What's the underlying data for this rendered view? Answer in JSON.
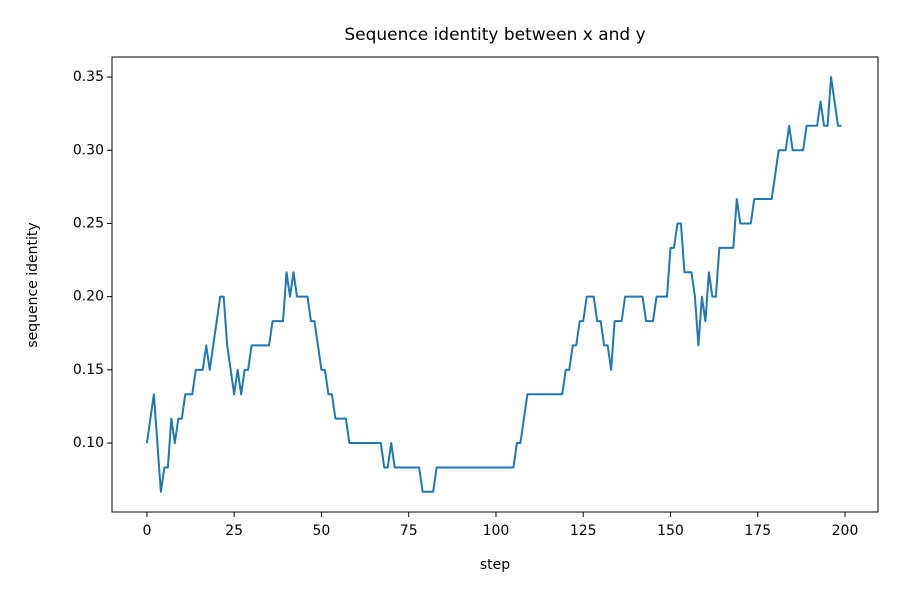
{
  "chart_data": {
    "type": "line",
    "title": "Sequence identity between x and y",
    "x_label": "step",
    "y_label": "sequence identity",
    "x": [
      0,
      1,
      2,
      3,
      4,
      5,
      6,
      7,
      8,
      9,
      10,
      11,
      12,
      13,
      14,
      15,
      16,
      17,
      18,
      19,
      20,
      21,
      22,
      23,
      24,
      25,
      26,
      27,
      28,
      29,
      30,
      31,
      32,
      33,
      34,
      35,
      36,
      37,
      38,
      39,
      40,
      41,
      42,
      43,
      44,
      45,
      46,
      47,
      48,
      49,
      50,
      51,
      52,
      53,
      54,
      55,
      56,
      57,
      58,
      59,
      60,
      61,
      62,
      63,
      64,
      65,
      66,
      67,
      68,
      69,
      70,
      71,
      72,
      73,
      74,
      75,
      76,
      77,
      78,
      79,
      80,
      81,
      82,
      83,
      84,
      85,
      86,
      87,
      88,
      89,
      90,
      91,
      92,
      93,
      94,
      95,
      96,
      97,
      98,
      99,
      100,
      101,
      102,
      103,
      104,
      105,
      106,
      107,
      108,
      109,
      110,
      111,
      112,
      113,
      114,
      115,
      116,
      117,
      118,
      119,
      120,
      121,
      122,
      123,
      124,
      125,
      126,
      127,
      128,
      129,
      130,
      131,
      132,
      133,
      134,
      135,
      136,
      137,
      138,
      139,
      140,
      141,
      142,
      143,
      144,
      145,
      146,
      147,
      148,
      149,
      150,
      151,
      152,
      153,
      154,
      155,
      156,
      157,
      158,
      159,
      160,
      161,
      162,
      163,
      164,
      165,
      166,
      167,
      168,
      169,
      170,
      171,
      172,
      173,
      174,
      175,
      176,
      177,
      178,
      179,
      180,
      181,
      182,
      183,
      184,
      185,
      186,
      187,
      188,
      189,
      190,
      191,
      192,
      193,
      194,
      195,
      196,
      197,
      198,
      199
    ],
    "series": [
      {
        "color": "#1f77b4",
        "values": [
          0.1,
          0.1167,
          0.1333,
          0.1,
          0.0667,
          0.0833,
          0.0833,
          0.1167,
          0.1,
          0.1167,
          0.1167,
          0.1333,
          0.1333,
          0.1333,
          0.15,
          0.15,
          0.15,
          0.1667,
          0.15,
          0.1667,
          0.1833,
          0.2,
          0.2,
          0.1667,
          0.15,
          0.1333,
          0.15,
          0.1333,
          0.15,
          0.15,
          0.1667,
          0.1667,
          0.1667,
          0.1667,
          0.1667,
          0.1667,
          0.1833,
          0.1833,
          0.1833,
          0.1833,
          0.2167,
          0.2,
          0.2167,
          0.2,
          0.2,
          0.2,
          0.2,
          0.1833,
          0.1833,
          0.1667,
          0.15,
          0.15,
          0.1333,
          0.1333,
          0.1167,
          0.1167,
          0.1167,
          0.1167,
          0.1,
          0.1,
          0.1,
          0.1,
          0.1,
          0.1,
          0.1,
          0.1,
          0.1,
          0.1,
          0.0833,
          0.0833,
          0.1,
          0.0833,
          0.0833,
          0.0833,
          0.0833,
          0.0833,
          0.0833,
          0.0833,
          0.0833,
          0.0667,
          0.0667,
          0.0667,
          0.0667,
          0.0833,
          0.0833,
          0.0833,
          0.0833,
          0.0833,
          0.0833,
          0.0833,
          0.0833,
          0.0833,
          0.0833,
          0.0833,
          0.0833,
          0.0833,
          0.0833,
          0.0833,
          0.0833,
          0.0833,
          0.0833,
          0.0833,
          0.0833,
          0.0833,
          0.0833,
          0.0833,
          0.1,
          0.1,
          0.1167,
          0.1333,
          0.1333,
          0.1333,
          0.1333,
          0.1333,
          0.1333,
          0.1333,
          0.1333,
          0.1333,
          0.1333,
          0.1333,
          0.15,
          0.15,
          0.1667,
          0.1667,
          0.1833,
          0.1833,
          0.2,
          0.2,
          0.2,
          0.1833,
          0.1833,
          0.1667,
          0.1667,
          0.15,
          0.1833,
          0.1833,
          0.1833,
          0.2,
          0.2,
          0.2,
          0.2,
          0.2,
          0.2,
          0.1833,
          0.1833,
          0.1833,
          0.2,
          0.2,
          0.2,
          0.2,
          0.2333,
          0.2333,
          0.25,
          0.25,
          0.2167,
          0.2167,
          0.2167,
          0.2,
          0.1667,
          0.2,
          0.1833,
          0.2167,
          0.2,
          0.2,
          0.2333,
          0.2333,
          0.2333,
          0.2333,
          0.2333,
          0.2667,
          0.25,
          0.25,
          0.25,
          0.25,
          0.2667,
          0.2667,
          0.2667,
          0.2667,
          0.2667,
          0.2667,
          0.2833,
          0.3,
          0.3,
          0.3,
          0.3167,
          0.3,
          0.3,
          0.3,
          0.3,
          0.3167,
          0.3167,
          0.3167,
          0.3167,
          0.3333,
          0.3167,
          0.3167,
          0.35,
          0.3333,
          0.3167,
          0.3167
        ]
      }
    ],
    "xlim": [
      -10,
      209.45
    ],
    "xticks": [
      0,
      25,
      50,
      75,
      100,
      125,
      150,
      175,
      200
    ],
    "ylim": [
      0.0529,
      0.3637
    ],
    "yticks": [
      {
        "value": 0.1,
        "label": "0.10"
      },
      {
        "value": 0.15,
        "label": "0.15"
      },
      {
        "value": 0.2,
        "label": "0.20"
      },
      {
        "value": 0.25,
        "label": "0.25"
      },
      {
        "value": 0.3,
        "label": "0.30"
      },
      {
        "value": 0.35,
        "label": "0.35"
      }
    ]
  }
}
